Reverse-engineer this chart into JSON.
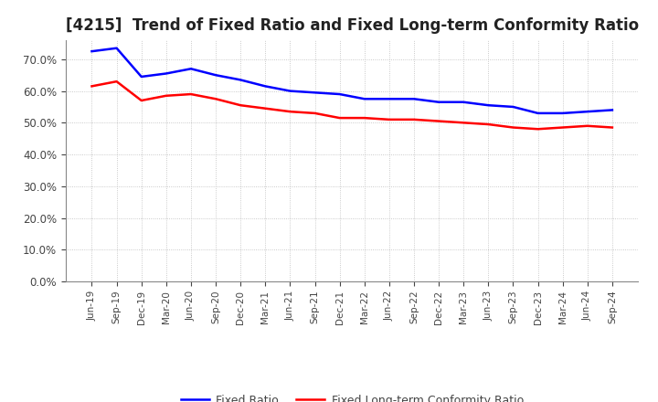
{
  "title": "[4215]  Trend of Fixed Ratio and Fixed Long-term Conformity Ratio",
  "x_labels": [
    "Jun-19",
    "Sep-19",
    "Dec-19",
    "Mar-20",
    "Jun-20",
    "Sep-20",
    "Dec-20",
    "Mar-21",
    "Jun-21",
    "Sep-21",
    "Dec-21",
    "Mar-22",
    "Jun-22",
    "Sep-22",
    "Dec-22",
    "Mar-23",
    "Jun-23",
    "Sep-23",
    "Dec-23",
    "Mar-24",
    "Jun-24",
    "Sep-24"
  ],
  "fixed_ratio": [
    72.5,
    73.5,
    64.5,
    65.5,
    67.0,
    65.0,
    63.5,
    61.5,
    60.0,
    59.5,
    59.0,
    57.5,
    57.5,
    57.5,
    56.5,
    56.5,
    55.5,
    55.0,
    53.0,
    53.0,
    53.5,
    54.0
  ],
  "fixed_lt_ratio": [
    61.5,
    63.0,
    57.0,
    58.5,
    59.0,
    57.5,
    55.5,
    54.5,
    53.5,
    53.0,
    51.5,
    51.5,
    51.0,
    51.0,
    50.5,
    50.0,
    49.5,
    48.5,
    48.0,
    48.5,
    49.0,
    48.5
  ],
  "fixed_ratio_color": "#0000FF",
  "fixed_lt_ratio_color": "#FF0000",
  "ylabel_values": [
    0.0,
    10.0,
    20.0,
    30.0,
    40.0,
    50.0,
    60.0,
    70.0
  ],
  "ylim": [
    0.0,
    76.0
  ],
  "background_color": "#FFFFFF",
  "grid_color": "#AAAAAA",
  "title_fontsize": 12,
  "legend_fixed_ratio": "Fixed Ratio",
  "legend_fixed_lt_ratio": "Fixed Long-term Conformity Ratio"
}
